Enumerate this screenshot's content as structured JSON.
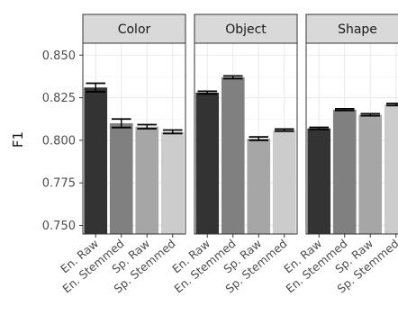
{
  "chart_data": {
    "type": "bar",
    "ylabel": "F1",
    "xlabel": "",
    "ylim": [
      0.745,
      0.857
    ],
    "yticks": [
      0.75,
      0.775,
      0.8,
      0.825,
      0.85
    ],
    "ytick_labels": [
      "0.750",
      "0.775",
      "0.800",
      "0.825",
      "0.850"
    ],
    "categories": [
      "En. Raw",
      "En. Stemmed",
      "Sp. Raw",
      "Sp. Stemmed"
    ],
    "bar_colors": [
      "#333333",
      "#808080",
      "#a6a6a6",
      "#cccccc"
    ],
    "panels": [
      {
        "name": "Color",
        "values": [
          0.831,
          0.81,
          0.808,
          0.805
        ],
        "err": [
          0.0025,
          0.0025,
          0.0012,
          0.001
        ]
      },
      {
        "name": "Object",
        "values": [
          0.828,
          0.837,
          0.801,
          0.806
        ],
        "err": [
          0.0008,
          0.0008,
          0.001,
          0.0006
        ]
      },
      {
        "name": "Shape",
        "values": [
          0.807,
          0.818,
          0.815,
          0.821
        ],
        "err": [
          0.0006,
          0.0005,
          0.0006,
          0.0006
        ]
      }
    ],
    "grid": true
  }
}
